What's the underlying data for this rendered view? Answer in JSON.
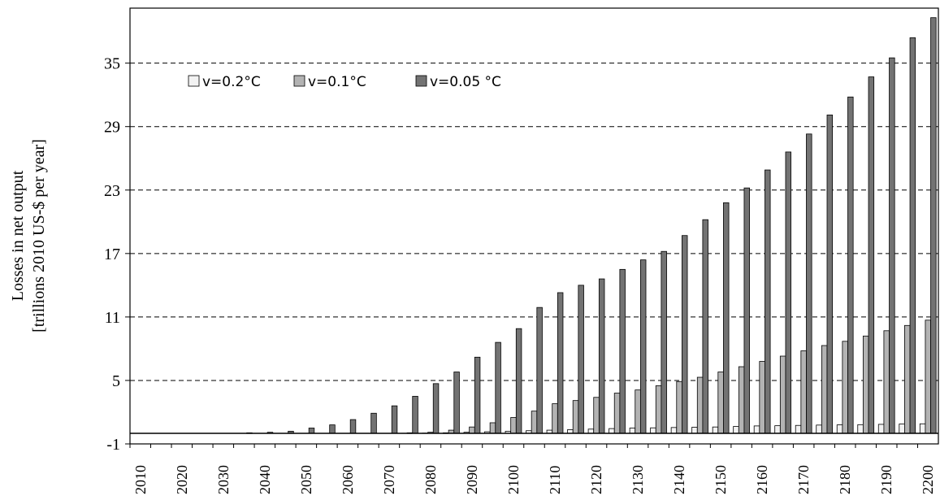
{
  "chart_data": {
    "type": "bar",
    "y_label": [
      "Losses  in  net  output",
      "[trillions 2010 US-$  per  year]"
    ],
    "categories": [
      "2010",
      null,
      "2020",
      null,
      "2030",
      null,
      "2040",
      null,
      "2050",
      null,
      "2060",
      null,
      "2070",
      null,
      "2080",
      null,
      "2090",
      null,
      "2100",
      null,
      "2110",
      null,
      "2120",
      null,
      "2130",
      null,
      "2140",
      null,
      "2150",
      null,
      "2160",
      null,
      "2170",
      null,
      "2180",
      null,
      "2190",
      null,
      "2200"
    ],
    "series": [
      {
        "name": "v=0.2°C",
        "color": "#f2f2f2",
        "values": [
          0,
          0,
          0,
          0,
          0,
          0,
          0,
          0,
          0,
          0,
          0,
          0,
          0,
          0.01,
          0.02,
          0.05,
          0.1,
          0.15,
          0.2,
          0.25,
          0.3,
          0.35,
          0.4,
          0.45,
          0.5,
          0.52,
          0.55,
          0.58,
          0.6,
          0.65,
          0.7,
          0.72,
          0.75,
          0.78,
          0.8,
          0.82,
          0.85,
          0.88,
          0.9
        ]
      },
      {
        "name": "v=0.1°C",
        "color": "#b3b3b3",
        "values": [
          0,
          0,
          0,
          0,
          0,
          0,
          0,
          0,
          0,
          0,
          0,
          0,
          0,
          0.05,
          0.1,
          0.3,
          0.6,
          1.0,
          1.5,
          2.1,
          2.8,
          3.1,
          3.4,
          3.8,
          4.1,
          4.5,
          4.9,
          5.3,
          5.8,
          6.3,
          6.8,
          7.3,
          7.8,
          8.3,
          8.7,
          9.2,
          9.7,
          10.2,
          10.7
        ]
      },
      {
        "name": "v=0.05 °C",
        "color": "#737373",
        "values": [
          0,
          0,
          0,
          0,
          0,
          0.05,
          0.1,
          0.2,
          0.5,
          0.8,
          1.3,
          1.9,
          2.6,
          3.5,
          4.7,
          5.8,
          7.2,
          8.6,
          9.9,
          11.9,
          13.3,
          14.0,
          14.6,
          15.5,
          16.4,
          17.2,
          18.7,
          20.2,
          21.8,
          23.2,
          24.9,
          26.6,
          28.3,
          30.1,
          31.8,
          33.7,
          35.5,
          37.4,
          39.3
        ]
      }
    ],
    "ylim": [
      -1,
      40.2
    ],
    "yticks": [
      -1,
      5,
      11,
      17,
      23,
      29,
      35
    ],
    "grid": true,
    "legend": "top-left"
  }
}
